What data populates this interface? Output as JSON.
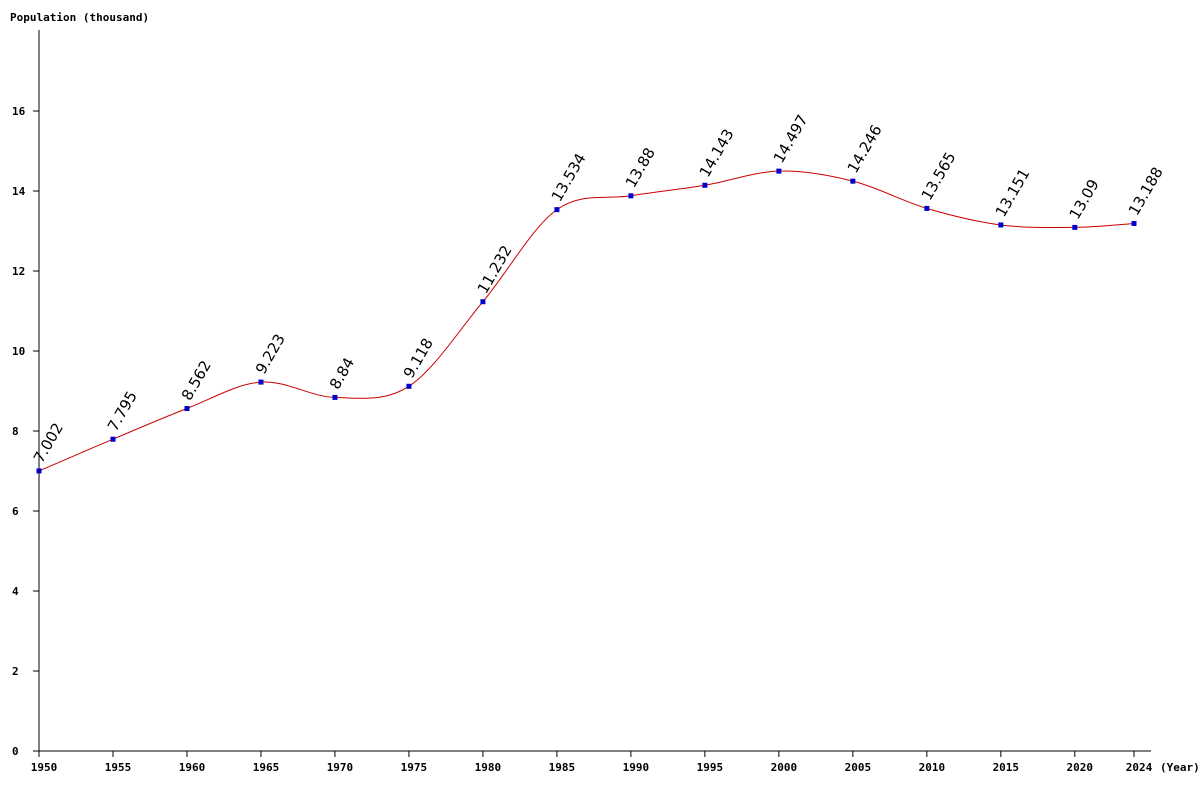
{
  "chart_data": {
    "type": "line",
    "ylabel": "Population (thousand)",
    "xlabel": "(Year)",
    "x": [
      1950,
      1955,
      1960,
      1965,
      1970,
      1975,
      1980,
      1985,
      1990,
      1995,
      2000,
      2005,
      2010,
      2015,
      2020,
      2024
    ],
    "series": [
      {
        "values": [
          7.002,
          7.795,
          8.562,
          9.223,
          8.84,
          9.118,
          11.232,
          13.534,
          13.88,
          14.143,
          14.497,
          14.246,
          13.565,
          13.151,
          13.09,
          13.188
        ],
        "labels": [
          "7.002",
          "7.795",
          "8.562",
          "9.223",
          "8.84",
          "9.118",
          "11.232",
          "13.534",
          "13.88",
          "14.143",
          "14.497",
          "14.246",
          "13.565",
          "13.151",
          "13.09",
          "13.188"
        ]
      }
    ],
    "yticks": [
      "0",
      "2",
      "4",
      "6",
      "8",
      "10",
      "12",
      "14",
      "16"
    ],
    "ytick_values": [
      0,
      2,
      4,
      6,
      8,
      10,
      12,
      14,
      16
    ],
    "xticks": [
      "1950",
      "1955",
      "1960",
      "1965",
      "1970",
      "1975",
      "1980",
      "1985",
      "1990",
      "1995",
      "2000",
      "2005",
      "2010",
      "2015",
      "2020",
      "2024"
    ],
    "xlim": [
      1950,
      2024
    ],
    "ylim": [
      0,
      18
    ],
    "grid": false,
    "line_color": "#cc0000",
    "marker_color": "#0000cc"
  }
}
